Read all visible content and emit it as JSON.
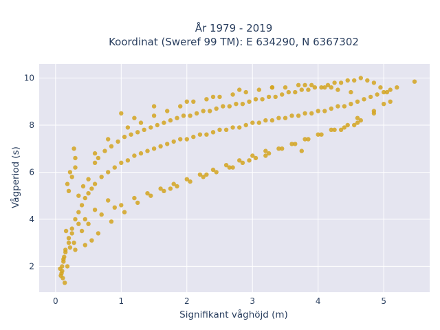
{
  "chart_data": {
    "type": "scatter",
    "title": [
      "År 1979 - 2019",
      "Koordinat (Sweref 99 TM): E 634290, N 6367302"
    ],
    "xlabel": "Signifikant våghöjd (m)",
    "ylabel": "Vågperiod (s)",
    "xlim": [
      -0.25,
      5.7
    ],
    "ylim": [
      0.9,
      10.6
    ],
    "xticks": [
      0,
      1,
      2,
      3,
      4,
      5
    ],
    "yticks": [
      2,
      4,
      6,
      8,
      10
    ],
    "grid": true,
    "legend": "none",
    "colors": {
      "marker": "#D4A520",
      "plot_bg": "#E5E5F0",
      "grid": "#ffffff",
      "text": "#2a3f5f"
    },
    "series": [
      {
        "x": [
          0.1,
          0.12,
          0.15,
          0.2,
          0.25,
          0.3,
          0.35,
          0.4,
          0.45,
          0.5,
          0.55,
          0.6,
          0.7,
          0.8,
          0.9,
          1.0,
          1.1,
          1.2,
          1.3,
          1.4,
          1.5,
          1.6,
          1.7,
          1.8,
          1.9,
          2.0,
          2.1,
          2.2,
          2.3,
          2.4,
          2.5,
          2.6,
          2.7,
          2.8,
          2.9,
          3.0,
          3.1,
          3.2,
          3.3,
          3.4,
          3.5,
          3.6,
          3.7,
          3.8,
          3.9,
          4.0,
          4.1,
          4.2,
          4.3,
          4.4,
          4.5,
          4.6,
          4.7,
          4.8,
          4.9,
          5.0,
          5.1,
          5.2,
          5.47,
          0.14,
          0.11,
          0.18,
          0.13,
          0.09,
          0.22,
          0.16,
          0.28,
          0.3,
          0.35,
          0.42,
          0.5,
          0.6,
          0.65,
          0.75,
          0.85,
          0.95,
          1.05,
          1.15,
          1.25,
          1.35,
          1.45,
          1.55,
          1.65,
          1.75,
          1.85,
          1.95,
          2.05,
          2.15,
          2.25,
          2.35,
          2.45,
          2.55,
          2.65,
          2.75,
          2.85,
          2.95,
          3.05,
          3.15,
          3.25,
          3.35,
          3.45,
          3.55,
          3.65,
          3.75,
          3.85,
          3.95,
          4.05,
          4.15,
          4.25,
          4.35,
          4.45,
          4.55,
          4.65,
          4.75,
          4.85,
          4.95,
          5.05,
          0.4,
          0.5,
          0.7,
          0.9,
          1.0,
          1.2,
          1.4,
          1.6,
          1.8,
          2.0,
          2.2,
          2.4,
          2.6,
          2.8,
          3.0,
          3.2,
          3.4,
          3.6,
          3.8,
          4.0,
          4.2,
          4.4,
          4.6,
          0.3,
          0.6,
          0.8,
          1.1,
          1.3,
          1.5,
          1.7,
          1.9,
          2.1,
          2.3,
          2.5,
          2.7,
          2.9,
          3.1,
          3.3,
          3.5,
          3.7,
          3.9,
          4.1,
          4.3,
          4.5,
          0.45,
          0.55,
          0.65,
          0.85,
          1.05,
          1.25,
          1.45,
          1.65,
          1.85,
          2.05,
          2.25,
          2.45,
          2.65,
          2.85,
          3.05,
          3.25,
          3.45,
          3.65,
          3.85,
          4.05,
          4.25,
          4.45,
          4.65,
          4.85,
          4.35,
          4.55,
          4.6,
          4.85,
          5.0,
          5.1,
          3.75,
          3.2,
          2.95,
          2.7,
          2.3,
          1.75,
          0.8,
          0.6,
          0.45,
          0.35,
          0.25,
          0.2,
          0.15,
          0.12,
          0.1,
          0.08,
          0.07,
          0.2,
          0.25,
          0.3,
          0.22,
          0.18,
          0.28,
          1.0,
          1.2,
          1.5,
          2.0,
          2.4,
          2.8,
          3.3,
          3.8,
          4.2
        ],
        "y": [
          1.8,
          2.2,
          2.6,
          3.2,
          3.6,
          4.0,
          4.3,
          4.6,
          4.9,
          5.1,
          5.3,
          5.5,
          5.8,
          6.0,
          6.2,
          6.4,
          6.5,
          6.7,
          6.8,
          6.9,
          7.0,
          7.1,
          7.2,
          7.3,
          7.4,
          7.4,
          7.5,
          7.6,
          7.6,
          7.7,
          7.8,
          7.8,
          7.9,
          7.9,
          8.0,
          8.1,
          8.1,
          8.2,
          8.2,
          8.3,
          8.3,
          8.4,
          8.4,
          8.5,
          8.5,
          8.6,
          8.6,
          8.7,
          8.8,
          8.8,
          8.9,
          9.0,
          9.1,
          9.2,
          9.3,
          9.4,
          9.5,
          9.6,
          9.85,
          1.3,
          1.5,
          2.0,
          2.4,
          1.7,
          2.8,
          3.5,
          3.0,
          2.7,
          5.0,
          5.4,
          5.7,
          6.4,
          6.6,
          6.9,
          7.1,
          7.3,
          7.5,
          7.6,
          7.7,
          7.8,
          7.9,
          8.0,
          8.1,
          8.2,
          8.3,
          8.4,
          8.4,
          8.5,
          8.6,
          8.6,
          8.7,
          8.8,
          8.8,
          8.9,
          8.9,
          9.0,
          9.1,
          9.1,
          9.2,
          9.2,
          9.3,
          9.4,
          9.4,
          9.5,
          9.5,
          9.6,
          9.6,
          9.7,
          9.8,
          9.8,
          9.9,
          9.9,
          10.0,
          9.9,
          9.8,
          9.6,
          9.4,
          3.5,
          3.8,
          4.2,
          4.5,
          4.6,
          4.9,
          5.1,
          5.3,
          5.5,
          5.7,
          5.9,
          6.1,
          6.3,
          6.5,
          6.7,
          6.9,
          7.0,
          7.2,
          7.4,
          7.6,
          7.8,
          7.9,
          8.1,
          6.2,
          6.8,
          7.4,
          7.9,
          8.1,
          8.4,
          8.6,
          8.8,
          9.0,
          9.1,
          9.2,
          9.3,
          9.4,
          9.5,
          9.6,
          9.6,
          9.7,
          9.7,
          9.6,
          9.5,
          9.4,
          2.9,
          3.1,
          3.4,
          3.9,
          4.3,
          4.7,
          5.0,
          5.2,
          5.4,
          5.6,
          5.8,
          6.0,
          6.2,
          6.4,
          6.6,
          6.8,
          7.0,
          7.2,
          7.4,
          7.6,
          7.8,
          8.0,
          8.2,
          8.5,
          7.8,
          8.0,
          8.3,
          8.6,
          8.9,
          9.0,
          6.9,
          6.7,
          6.5,
          6.2,
          5.9,
          5.3,
          4.8,
          4.4,
          4.0,
          3.8,
          3.4,
          3.0,
          2.7,
          2.3,
          2.0,
          1.6,
          1.9,
          5.2,
          5.8,
          6.6,
          6.0,
          5.5,
          7.0,
          8.5,
          8.3,
          8.8,
          9.0,
          9.2,
          9.5,
          9.6,
          9.7,
          9.6
        ]
      }
    ]
  }
}
